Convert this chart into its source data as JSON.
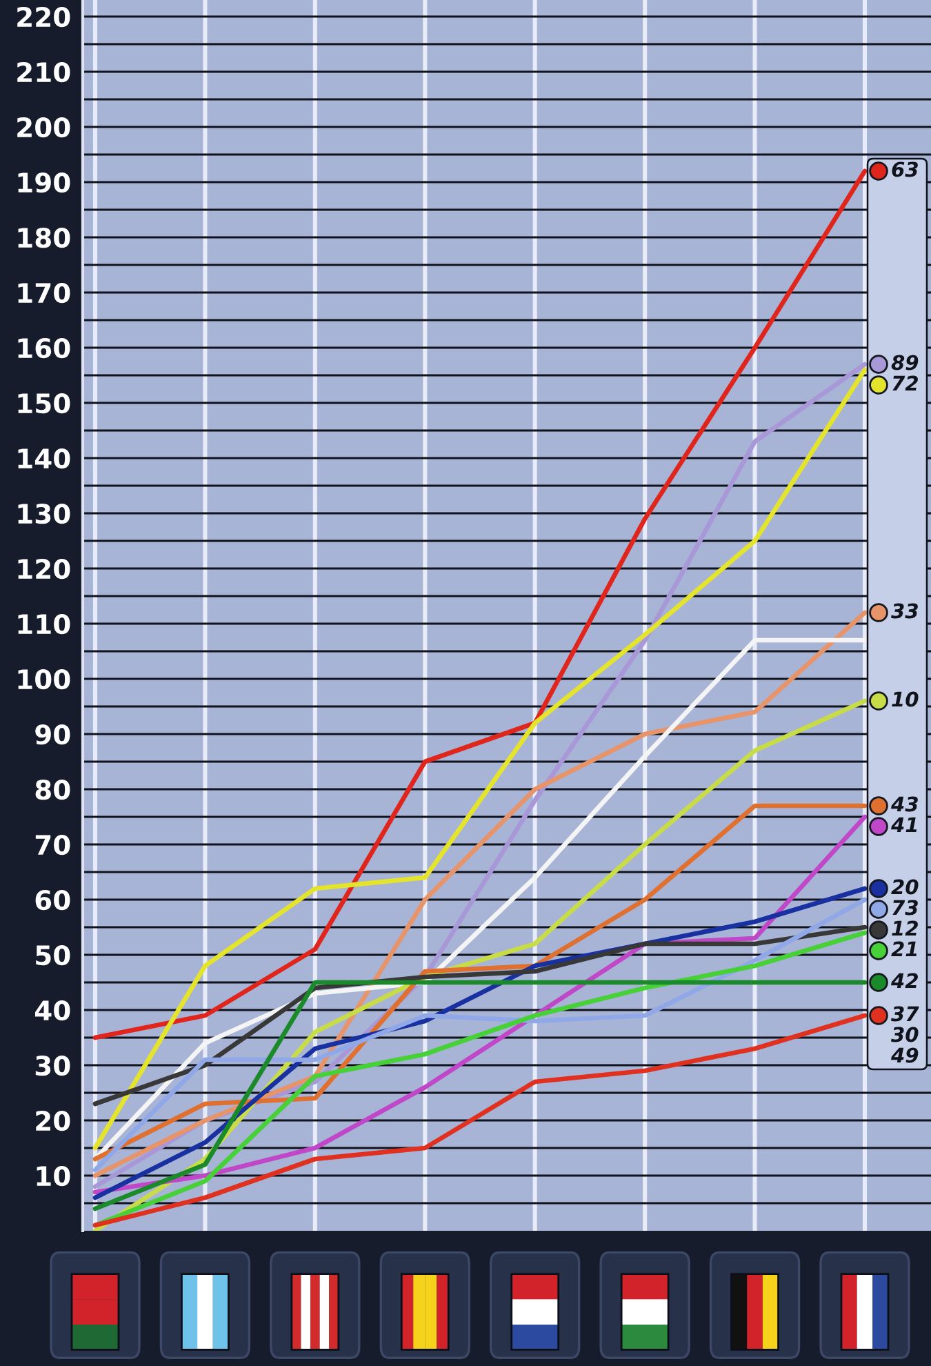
{
  "chart_data": {
    "type": "line",
    "categories": [
      null,
      null,
      null,
      null,
      null,
      null,
      null,
      null
    ],
    "ylim": [
      0,
      223
    ],
    "yticks": [
      10,
      20,
      30,
      40,
      50,
      60,
      70,
      80,
      90,
      100,
      110,
      120,
      130,
      140,
      150,
      160,
      170,
      180,
      190,
      200,
      210,
      220
    ],
    "grid": true,
    "tick_labels": "y",
    "legend": "right",
    "series": [
      {
        "name": "63",
        "color": "#e0261c",
        "values": [
          35,
          39,
          51,
          85,
          92,
          129,
          160,
          192
        ]
      },
      {
        "name": "89",
        "color": "#a898d8",
        "values": [
          8,
          20,
          27,
          46,
          78,
          107,
          143,
          157
        ]
      },
      {
        "name": "72",
        "color": "#e4e42c",
        "values": [
          15,
          48,
          62,
          64,
          92,
          108,
          125,
          156
        ]
      },
      {
        "name": "33",
        "color": "#e8946a",
        "values": [
          10,
          20,
          28,
          60,
          80,
          90,
          94,
          112
        ]
      },
      {
        "color": "#f4f4f4",
        "values": [
          13,
          34,
          43,
          45,
          64,
          86,
          107,
          107
        ]
      },
      {
        "name": "10",
        "color": "#c8dc48",
        "values": [
          0,
          13,
          36,
          46,
          52,
          70,
          87,
          96
        ]
      },
      {
        "name": "43",
        "color": "#e07030",
        "values": [
          13,
          23,
          24,
          47,
          48,
          60,
          77,
          77
        ]
      },
      {
        "name": "41",
        "color": "#c048c8",
        "values": [
          7,
          10,
          15,
          26,
          39,
          52,
          53,
          75
        ]
      },
      {
        "name": "20",
        "color": "#1830a0",
        "values": [
          6,
          16,
          33,
          38,
          48,
          52,
          56,
          62
        ]
      },
      {
        "name": "12",
        "color": "#383838",
        "values": [
          23,
          30,
          44,
          46,
          47,
          52,
          52,
          55
        ]
      },
      {
        "name": "73",
        "color": "#90a8e8",
        "values": [
          11,
          31,
          31,
          39,
          38,
          39,
          49,
          60
        ]
      },
      {
        "name": "21",
        "color": "#48d038",
        "values": [
          1,
          9,
          28,
          32,
          39,
          44,
          48,
          54
        ]
      },
      {
        "name": "42",
        "color": "#1a8a2a",
        "values": [
          4,
          12,
          45,
          45,
          45,
          45,
          45,
          45
        ]
      },
      {
        "name": "37",
        "color": "#e03020",
        "values": [
          1,
          6,
          13,
          15,
          27,
          29,
          33,
          39
        ]
      }
    ],
    "annotations": [
      "30",
      "49"
    ]
  }
}
